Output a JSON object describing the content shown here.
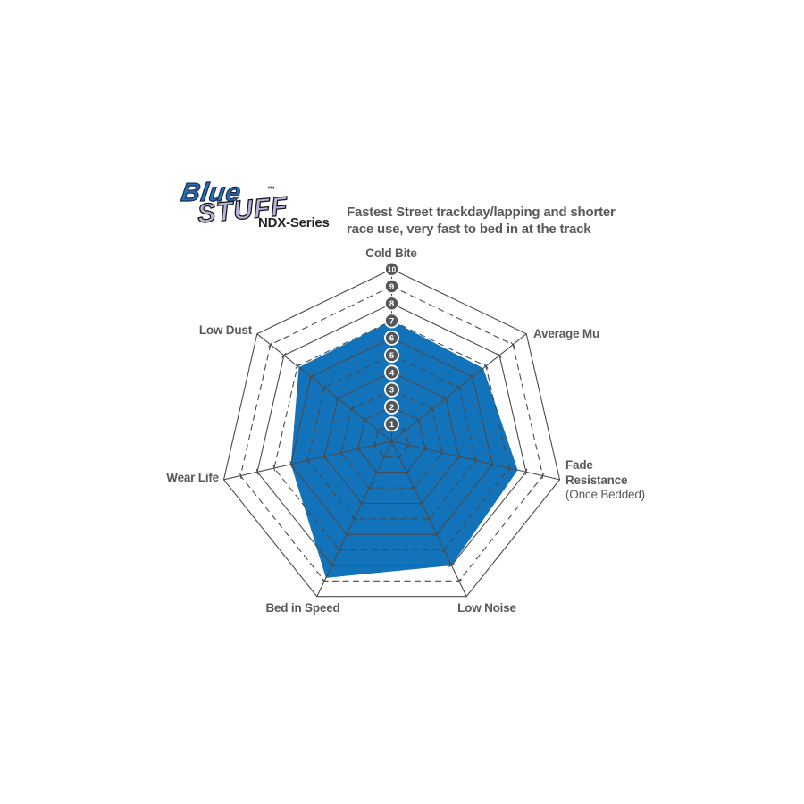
{
  "logo": {
    "word1": "Blue",
    "word2": "STUFF",
    "tm": "™",
    "series": "NDX-Series"
  },
  "description": "Fastest Street trackday/lapping and shorter\nrace use, very fast to bed in at the track",
  "chart_data": {
    "type": "radar",
    "title": "Bluestuff NDX-Series brake pad performance radar",
    "categories": [
      "Cold Bite",
      "Average Mu",
      "Fade Resistance (Once Bedded)",
      "Low Noise",
      "Bed in Speed",
      "Wear Life",
      "Low Dust"
    ],
    "values": [
      7,
      6.8,
      7.5,
      8,
      8.8,
      6,
      6.9
    ],
    "axes": [
      {
        "label": "Cold Bite",
        "value": 7
      },
      {
        "label": "Average Mu",
        "value": 6.8
      },
      {
        "label": "Fade\nResistance",
        "sub": "(Once Bedded)",
        "value": 7.5
      },
      {
        "label": "Low Noise",
        "value": 8
      },
      {
        "label": "Bed in Speed",
        "value": 8.8
      },
      {
        "label": "Wear Life",
        "value": 6
      },
      {
        "label": "Low Dust",
        "value": 6.9
      }
    ],
    "scale": {
      "min": 0,
      "max": 10,
      "ring_interval": 1,
      "tick_badges": [
        1,
        2,
        3,
        4,
        5,
        6,
        7,
        8,
        9,
        10
      ]
    },
    "grid": {
      "solid_rings": "even levels",
      "dashed_rings": "odd levels",
      "axis_ticks": true
    },
    "legend_position": "none",
    "colors": {
      "fill": "#1273BA",
      "grid": "#4A4A4B",
      "badge": "#55565A",
      "badge_text": "#FFFFFF",
      "label": "#58595B",
      "logo_blue": "#1B75BC",
      "logo_lavender": "#B4B4DC"
    }
  }
}
